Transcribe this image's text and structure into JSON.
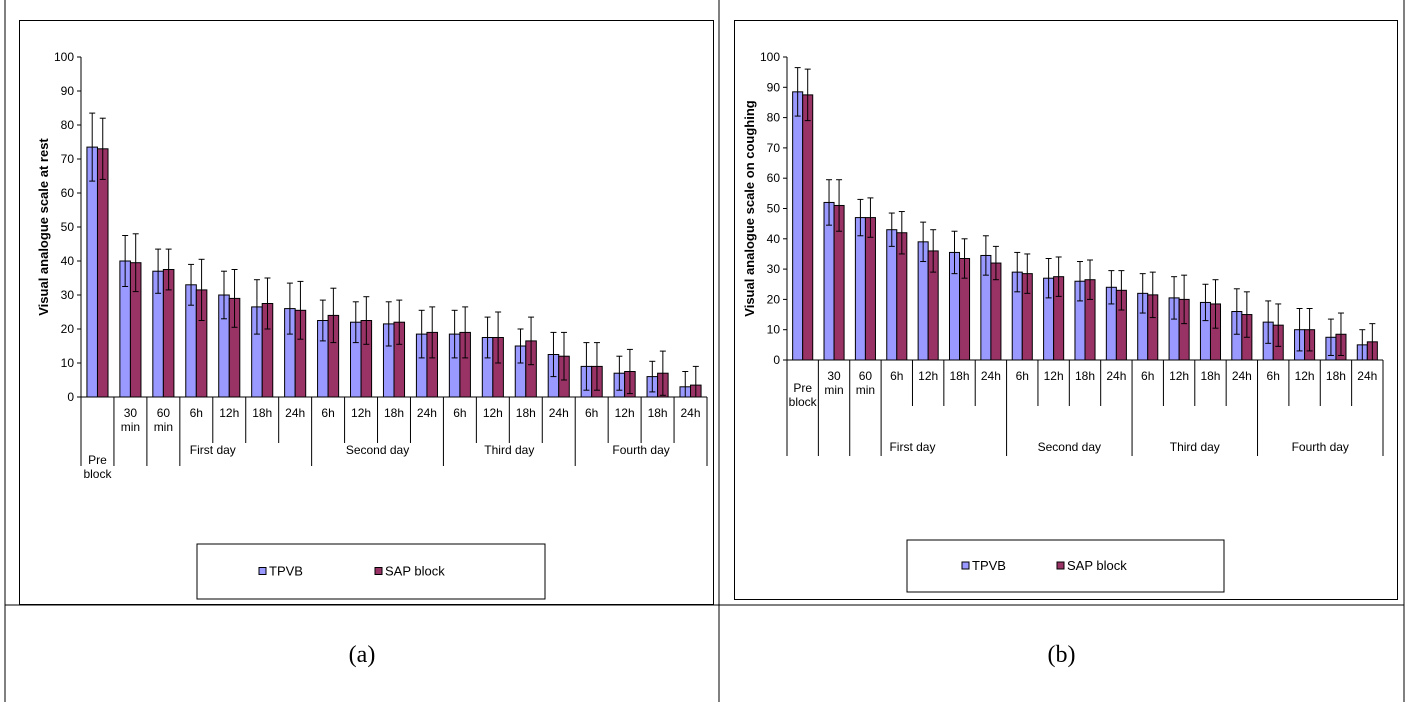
{
  "captions": {
    "a": "(a)",
    "b": "(b)"
  },
  "colors": {
    "tpvb": "#9999ff",
    "sap": "#993366"
  },
  "chart_data": [
    {
      "type": "bar",
      "ylabel": "Visual analogue scale at rest",
      "ylim": [
        0,
        100
      ],
      "ytick_step": 10,
      "categories": [
        [
          "Pre",
          "block"
        ],
        [
          "30",
          "min"
        ],
        [
          "60",
          "min"
        ],
        [
          "6h"
        ],
        [
          "12h"
        ],
        [
          "18h"
        ],
        [
          "24h"
        ],
        [
          "6h"
        ],
        [
          "12h"
        ],
        [
          "18h"
        ],
        [
          "24h"
        ],
        [
          "6h"
        ],
        [
          "12h"
        ],
        [
          "18h"
        ],
        [
          "24h"
        ],
        [
          "6h"
        ],
        [
          "12h"
        ],
        [
          "18h"
        ],
        [
          "24h"
        ]
      ],
      "groups": [
        {
          "label": "First day",
          "start": 1,
          "end": 6
        },
        {
          "label": "Second day",
          "start": 7,
          "end": 10
        },
        {
          "label": "Third day",
          "start": 11,
          "end": 14
        },
        {
          "label": "Fourth day",
          "start": 15,
          "end": 18
        }
      ],
      "series": [
        {
          "name": "TPVB",
          "values": [
            73.5,
            40,
            37,
            33,
            30,
            26.5,
            26,
            22.5,
            22,
            21.5,
            18.5,
            18.5,
            17.5,
            15,
            12.5,
            9,
            7,
            6,
            3
          ],
          "errors": [
            10,
            7.5,
            6.5,
            6,
            7,
            8,
            7.5,
            6,
            6,
            6.5,
            7,
            7,
            6,
            5,
            6.5,
            7,
            5,
            4.5,
            4.5
          ]
        },
        {
          "name": "SAP block",
          "values": [
            73,
            39.5,
            37.5,
            31.5,
            29,
            27.5,
            25.5,
            24,
            22.5,
            22,
            19,
            19,
            17.5,
            16.5,
            12,
            9,
            7.5,
            7,
            3.5
          ],
          "errors": [
            9,
            8.5,
            6,
            9,
            8.5,
            7.5,
            8.5,
            8,
            7,
            6.5,
            7.5,
            7.5,
            7.5,
            7,
            7,
            7,
            6.5,
            6.5,
            5.5
          ]
        }
      ],
      "legend": "bottom-center"
    },
    {
      "type": "bar",
      "ylabel": "Visual analogue scale on coughing",
      "ylim": [
        0,
        100
      ],
      "ytick_step": 10,
      "categories": [
        [
          "Pre",
          "block"
        ],
        [
          "30",
          "min"
        ],
        [
          "60",
          "min"
        ],
        [
          "6h"
        ],
        [
          "12h"
        ],
        [
          "18h"
        ],
        [
          "24h"
        ],
        [
          "6h"
        ],
        [
          "12h"
        ],
        [
          "18h"
        ],
        [
          "24h"
        ],
        [
          "6h"
        ],
        [
          "12h"
        ],
        [
          "18h"
        ],
        [
          "24h"
        ],
        [
          "6h"
        ],
        [
          "12h"
        ],
        [
          "18h"
        ],
        [
          "24h"
        ]
      ],
      "groups": [
        {
          "label": "First day",
          "start": 1,
          "end": 6
        },
        {
          "label": "Second day",
          "start": 7,
          "end": 10
        },
        {
          "label": "Third day",
          "start": 11,
          "end": 14
        },
        {
          "label": "Fourth day",
          "start": 15,
          "end": 18
        }
      ],
      "series": [
        {
          "name": "TPVB",
          "values": [
            88.5,
            52,
            47,
            43,
            39,
            35.5,
            34.5,
            29,
            27,
            26,
            24,
            22,
            20.5,
            19,
            16,
            12.5,
            10,
            7.5,
            5
          ],
          "errors": [
            8,
            7.5,
            6,
            5.5,
            6.5,
            7,
            6.5,
            6.5,
            6.5,
            6.5,
            5.5,
            6.5,
            7,
            6,
            7.5,
            7,
            7,
            6,
            5
          ]
        },
        {
          "name": "SAP block",
          "values": [
            87.5,
            51,
            47,
            42,
            36,
            33.5,
            32,
            28.5,
            27.5,
            26.5,
            23,
            21.5,
            20,
            18.5,
            15,
            11.5,
            10,
            8.5,
            6
          ],
          "errors": [
            8.5,
            8.5,
            6.5,
            7,
            7,
            6.5,
            5.5,
            6.5,
            6.5,
            6.5,
            6.5,
            7.5,
            8,
            8,
            7.5,
            7,
            7,
            7,
            6
          ]
        }
      ],
      "legend": "bottom-center"
    }
  ]
}
